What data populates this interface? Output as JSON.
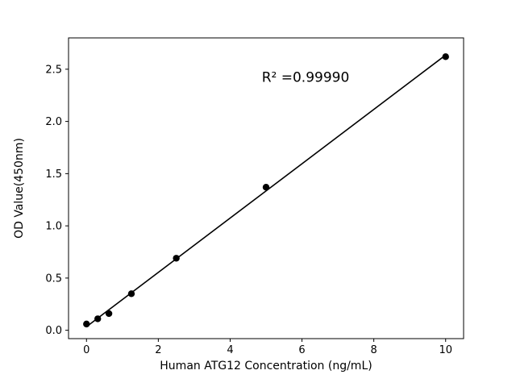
{
  "chart_data": {
    "type": "scatter",
    "title": "",
    "xlabel": "Human ATG12 Concentration (ng/mL)",
    "ylabel": "OD Value(450nm)",
    "annotation": {
      "text": "R² =0.99990",
      "x": 6.1,
      "y": 2.38
    },
    "x": [
      0,
      0.313,
      0.625,
      1.25,
      2.5,
      5,
      10
    ],
    "y": [
      0.06,
      0.11,
      0.16,
      0.35,
      0.69,
      1.37,
      2.62
    ],
    "fit_line": true,
    "xlim": [
      -0.5,
      10.5
    ],
    "ylim": [
      -0.08,
      2.8
    ],
    "xticks": [
      0,
      2,
      4,
      6,
      8,
      10
    ],
    "yticks": [
      0.0,
      0.5,
      1.0,
      1.5,
      2.0,
      2.5
    ],
    "grid": false,
    "legend": null,
    "marker_color": "#000000",
    "line_color": "#000000",
    "background_color": "#ffffff"
  }
}
